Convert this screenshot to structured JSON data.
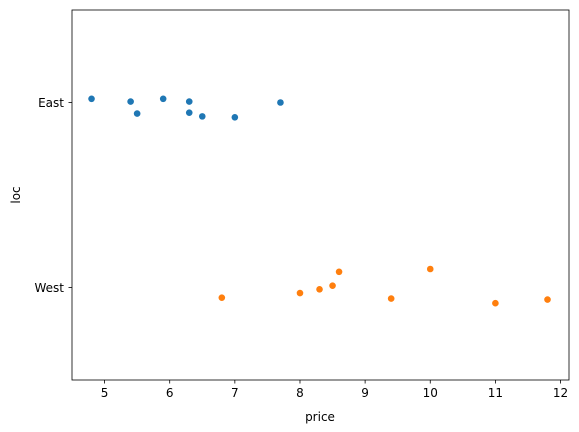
{
  "chart_data": {
    "type": "scatter",
    "xlabel": "price",
    "ylabel": "loc",
    "categories": [
      "East",
      "West"
    ],
    "xlim": [
      4.5,
      12.13
    ],
    "xticks": [
      5,
      6,
      7,
      8,
      9,
      10,
      11,
      12
    ],
    "grid": false,
    "legend": "none",
    "series": [
      {
        "category": "East",
        "color": "#1f77b4",
        "points": [
          {
            "x": 4.8,
            "jitter": -0.02
          },
          {
            "x": 5.4,
            "jitter": -0.005
          },
          {
            "x": 5.5,
            "jitter": 0.06
          },
          {
            "x": 5.9,
            "jitter": -0.02
          },
          {
            "x": 6.3,
            "jitter": -0.005
          },
          {
            "x": 6.3,
            "jitter": 0.055
          },
          {
            "x": 6.5,
            "jitter": 0.075
          },
          {
            "x": 7.0,
            "jitter": 0.08
          },
          {
            "x": 7.7,
            "jitter": 0.0
          }
        ]
      },
      {
        "category": "West",
        "color": "#ff7f0e",
        "points": [
          {
            "x": 6.8,
            "jitter": 0.055
          },
          {
            "x": 8.0,
            "jitter": 0.03
          },
          {
            "x": 8.3,
            "jitter": 0.01
          },
          {
            "x": 8.5,
            "jitter": -0.01
          },
          {
            "x": 8.6,
            "jitter": -0.085
          },
          {
            "x": 9.4,
            "jitter": 0.06
          },
          {
            "x": 10.0,
            "jitter": -0.1
          },
          {
            "x": 11.0,
            "jitter": 0.085
          },
          {
            "x": 11.8,
            "jitter": 0.065
          }
        ]
      }
    ]
  }
}
